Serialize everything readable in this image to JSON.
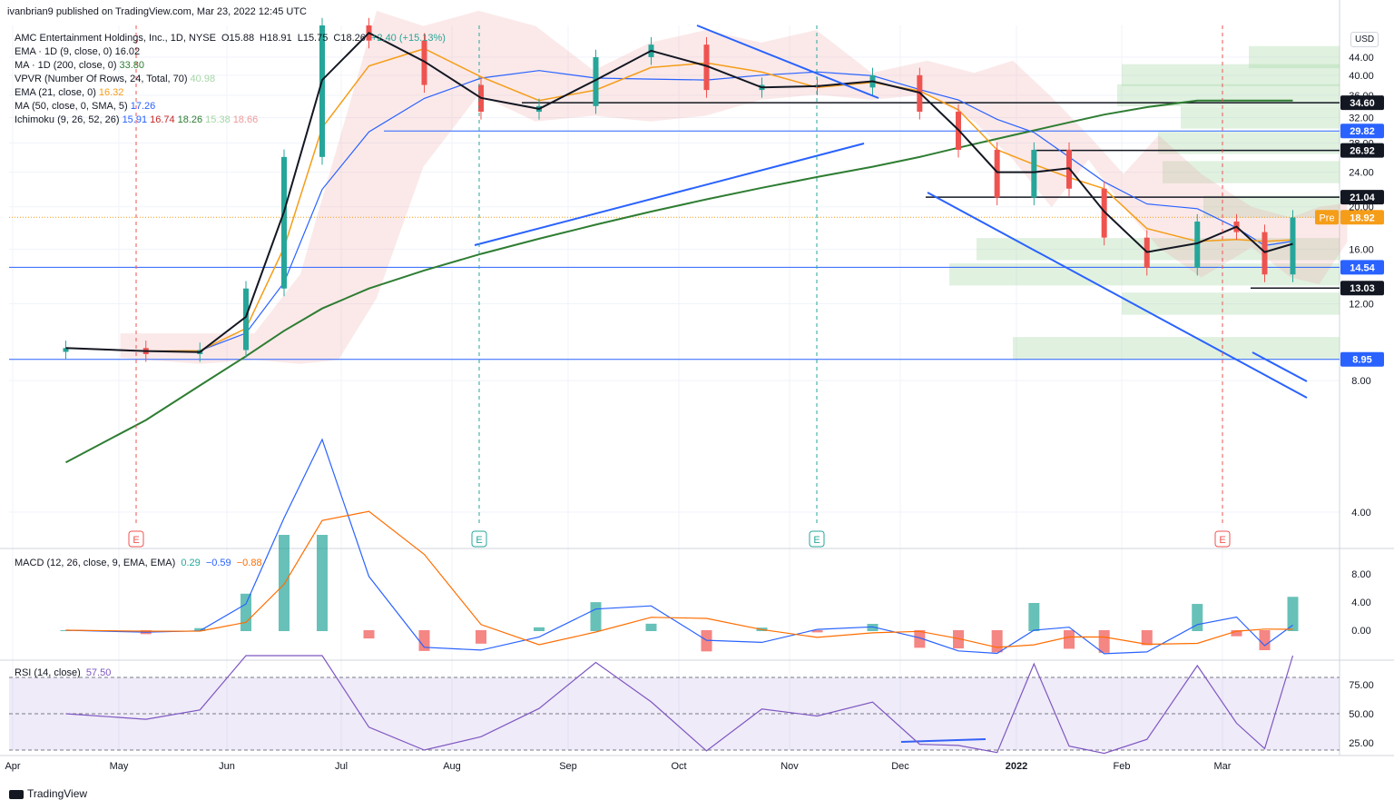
{
  "header": {
    "published_by": "ivanbrian9 published on TradingView.com, Mar 23, 2022 12:45 UTC"
  },
  "legend": {
    "symbol_line": {
      "label": "AMC Entertainment Holdings, Inc., 1D, NYSE",
      "o": "O15.88",
      "h": "H18.91",
      "l": "L15.75",
      "c": "C18.26",
      "chg": "+2.40 (+15.13%)"
    },
    "lines": [
      {
        "label": "EMA · 1D (9, close, 0)",
        "value": "16.02",
        "color": "#131722"
      },
      {
        "label": "MA · 1D (200, close, 0)",
        "value": "33.80",
        "color": "#2e7d32"
      },
      {
        "label": "VPVR (Number Of Rows, 24, Total, 70)",
        "value": "40.98",
        "color": "#a5d6a7"
      },
      {
        "label": "EMA (21, close, 0)",
        "value": "16.32",
        "color": "#f59d18"
      },
      {
        "label": "MA (50, close, 0, SMA, 5)",
        "value": "17.26",
        "color": "#2962ff"
      },
      {
        "label": "Ichimoku (9, 26, 52, 26)",
        "value": "15.91",
        "color": "#2962ff",
        "extra": [
          "16.74",
          "18.26",
          "15.38",
          "18.66"
        ]
      }
    ],
    "macd": {
      "label": "MACD (12, 26, close, 9, EMA, EMA)",
      "values": [
        "0.29",
        "−0.59",
        "−0.88"
      ],
      "colors": [
        "#26a69a",
        "#2962ff",
        "#ff6d00"
      ]
    },
    "rsi": {
      "label": "RSI (14, close)",
      "value": "57.50",
      "color": "#7e57c2"
    }
  },
  "currency_button": "USD",
  "footer": {
    "logo": "TradingView"
  },
  "colors": {
    "up": "#26a69a",
    "down": "#ef5350",
    "ema9": "#131722",
    "ema21": "#f59d18",
    "ma50": "#2962ff",
    "ma200": "#2e7d32",
    "grid": "#f0f3fa",
    "trend": "#2962ff"
  },
  "chart_data": {
    "type": "candlestick",
    "title": "AMC Entertainment Holdings, Inc., 1D, NYSE",
    "x_axis_labels": [
      "Apr",
      "May",
      "Jun",
      "Jul",
      "Aug",
      "Sep",
      "Oct",
      "Nov",
      "Dec",
      "2022",
      "Feb",
      "Mar"
    ],
    "y_axis": {
      "scale": "log",
      "ticks": [
        "44.00",
        "40.00",
        "36.00",
        "32.00",
        "28.00",
        "24.00",
        "20.00",
        "16.00",
        "12.00",
        "8.00",
        "4.00"
      ]
    },
    "price_levels": [
      {
        "value": "34.60",
        "style": "black"
      },
      {
        "value": "29.82",
        "style": "blue"
      },
      {
        "value": "26.92",
        "style": "black"
      },
      {
        "value": "21.04",
        "style": "black"
      },
      {
        "value": "14.54",
        "style": "blue"
      },
      {
        "value": "13.03",
        "style": "black"
      },
      {
        "value": "8.95",
        "style": "blue"
      }
    ],
    "current_price": {
      "label": "Pre",
      "value": "18.92"
    },
    "earnings_markers": [
      "E",
      "E",
      "E",
      "E"
    ],
    "macd_axis": [
      "8.00",
      "4.00",
      "0.00"
    ],
    "rsi_axis": [
      "75.00",
      "50.00",
      "25.00"
    ],
    "close_series": [
      {
        "date": "Apr",
        "close": 9.5
      },
      {
        "date": "May",
        "close": 9.2
      },
      {
        "date": "May",
        "close": 9.4
      },
      {
        "date": "Jun",
        "close": 13.0
      },
      {
        "date": "Jun",
        "close": 26.0
      },
      {
        "date": "Jun",
        "close": 52.0
      },
      {
        "date": "Jul",
        "close": 48.0
      },
      {
        "date": "Jul",
        "close": 38.0
      },
      {
        "date": "Aug",
        "close": 33.0
      },
      {
        "date": "Aug",
        "close": 34.0
      },
      {
        "date": "Sep",
        "close": 44.0
      },
      {
        "date": "Sep",
        "close": 47.0
      },
      {
        "date": "Oct",
        "close": 37.0
      },
      {
        "date": "Oct",
        "close": 38.0
      },
      {
        "date": "Nov",
        "close": 37.5
      },
      {
        "date": "Nov",
        "close": 40.0
      },
      {
        "date": "Dec",
        "close": 33.0
      },
      {
        "date": "Dec",
        "close": 27.0
      },
      {
        "date": "Dec",
        "close": 21.0
      },
      {
        "date": "2022",
        "close": 27.0
      },
      {
        "date": "2022",
        "close": 22.0
      },
      {
        "date": "2022",
        "close": 17.0
      },
      {
        "date": "Feb",
        "close": 14.5
      },
      {
        "date": "Feb",
        "close": 18.5
      },
      {
        "date": "Mar",
        "close": 17.5
      },
      {
        "date": "Mar",
        "close": 14.0
      },
      {
        "date": "Mar",
        "close": 18.9
      }
    ]
  }
}
